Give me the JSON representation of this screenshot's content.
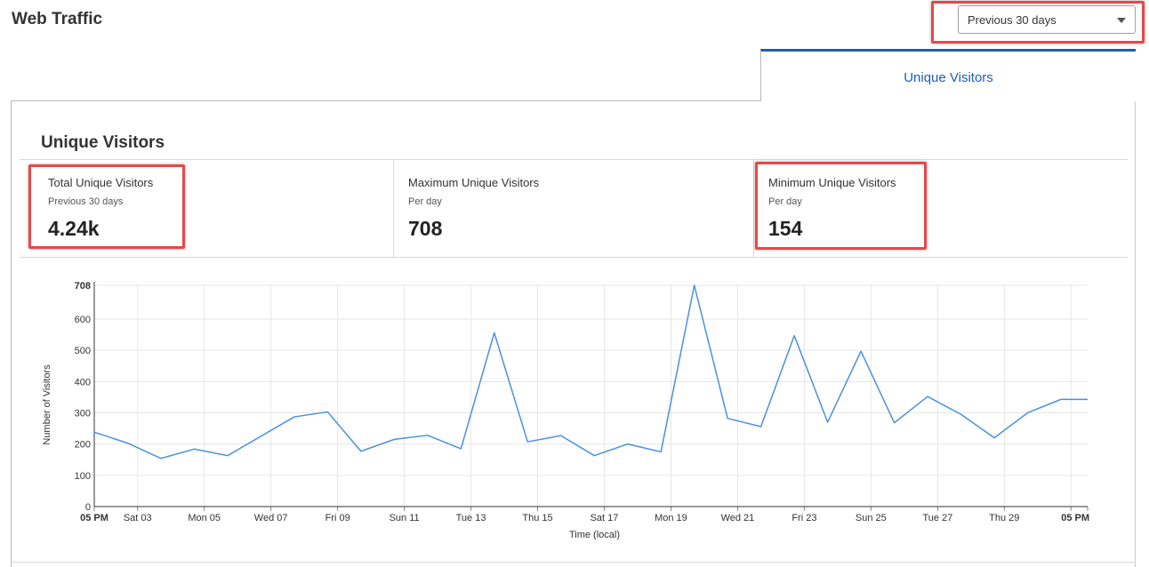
{
  "header": {
    "title": "Web Traffic"
  },
  "range_select": {
    "value": "Previous 30 days"
  },
  "tabs": [
    {
      "label": "Unique Visitors",
      "active": true
    }
  ],
  "section": {
    "title": "Unique Visitors"
  },
  "stats": [
    {
      "title": "Total Unique Visitors",
      "subtitle": "Previous 30 days",
      "value": "4.24k"
    },
    {
      "title": "Maximum Unique Visitors",
      "subtitle": "Per day",
      "value": "708"
    },
    {
      "title": "Minimum Unique Visitors",
      "subtitle": "Per day",
      "value": "154"
    }
  ],
  "colors": {
    "accent": "#1b5fb4",
    "line": "#4a90e2",
    "highlight": "#e8474a"
  },
  "chart_data": {
    "type": "line",
    "title": "",
    "xlabel": "Time (local)",
    "ylabel": "Number of Visitors",
    "ylim": [
      0,
      708
    ],
    "yticks": [
      0,
      100,
      200,
      300,
      400,
      500,
      600,
      708
    ],
    "ytick_labels": [
      "0",
      "100",
      "200",
      "300",
      "400",
      "500",
      "600",
      "708"
    ],
    "xlim": [
      0,
      29.8
    ],
    "xticks": [
      0,
      1.3,
      3.3,
      5.3,
      7.3,
      9.3,
      11.3,
      13.3,
      15.3,
      17.3,
      19.3,
      21.3,
      23.3,
      25.3,
      27.3,
      29.3,
      29.8
    ],
    "xtick_labels": [
      "05 PM",
      "Sat 03",
      "Mon 05",
      "Wed 07",
      "Fri 09",
      "Sun 11",
      "Tue 13",
      "Thu 15",
      "Sat 17",
      "Mon 19",
      "Wed 21",
      "Fri 23",
      "Sun 25",
      "Tue 27",
      "Thu 29",
      "",
      "05 PM"
    ],
    "grid": true,
    "series": [
      {
        "x": [
          0,
          1,
          2,
          3,
          4,
          5,
          6,
          7,
          8,
          9,
          10,
          11,
          12,
          13,
          14,
          15,
          16,
          17,
          18,
          19,
          20,
          21,
          22,
          23,
          24,
          25,
          26,
          27,
          28,
          29,
          29.8
        ],
        "values": [
          238,
          203,
          154,
          184,
          163,
          225,
          287,
          303,
          177,
          215,
          228,
          185,
          556,
          207,
          227,
          163,
          200,
          175,
          708,
          282,
          256,
          547,
          270,
          497,
          268,
          352,
          295,
          220,
          300,
          343,
          343
        ]
      }
    ]
  }
}
